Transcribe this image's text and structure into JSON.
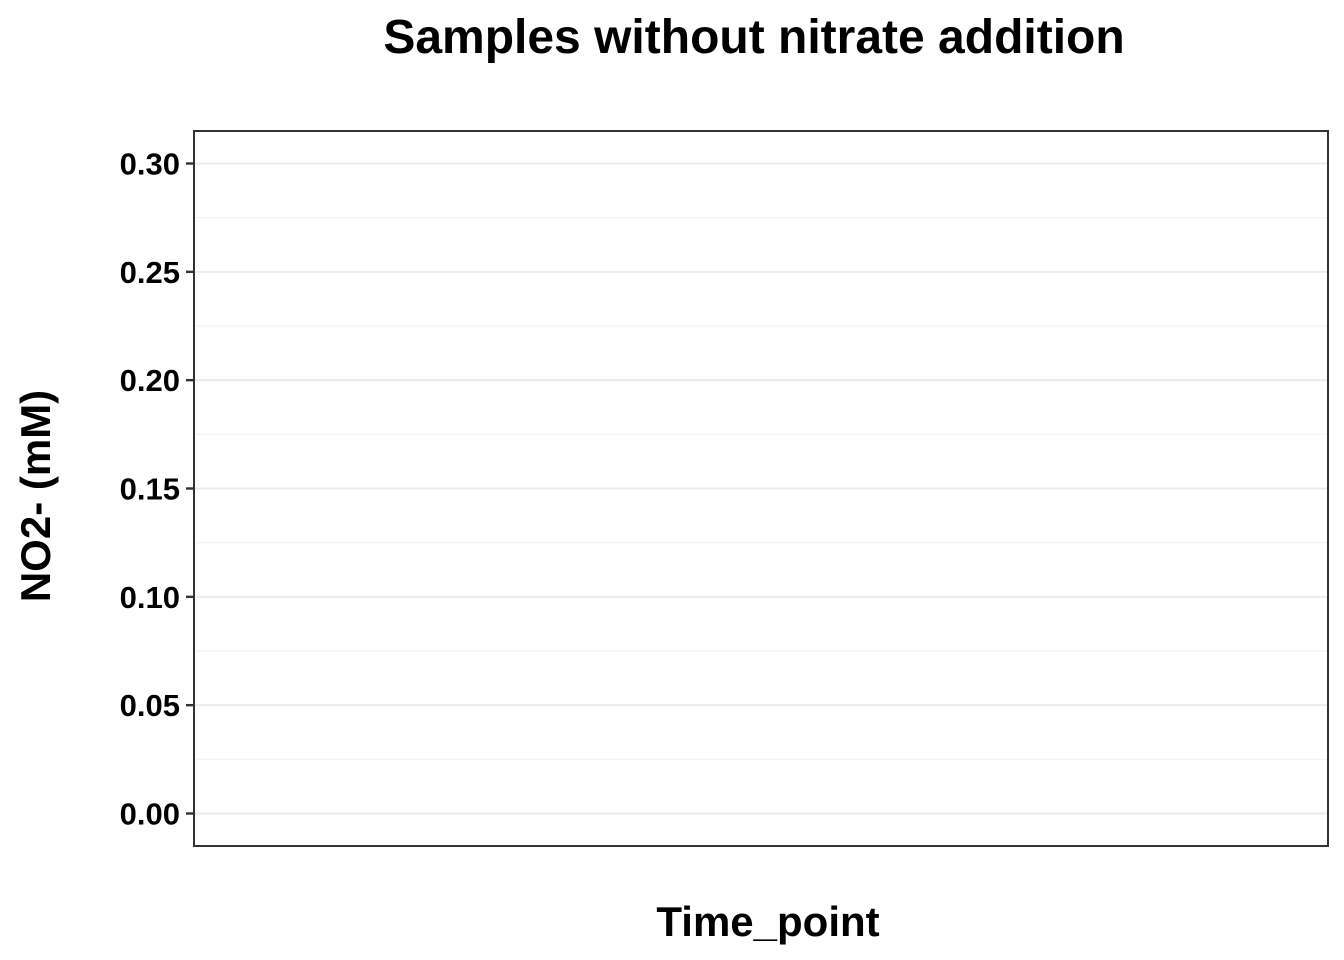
{
  "chart_data": {
    "type": "line",
    "title": "Samples without nitrate addition",
    "xlabel": "Time_point",
    "ylabel": "NO2- (mM)",
    "ylim": [
      -0.015,
      0.315
    ],
    "y_ticks": [
      {
        "value": 0.0,
        "label": "0.00"
      },
      {
        "value": 0.05,
        "label": "0.05"
      },
      {
        "value": 0.1,
        "label": "0.10"
      },
      {
        "value": 0.15,
        "label": "0.15"
      },
      {
        "value": 0.2,
        "label": "0.20"
      },
      {
        "value": 0.25,
        "label": "0.25"
      },
      {
        "value": 0.3,
        "label": "0.30"
      }
    ],
    "x_ticks": [],
    "series": [],
    "grid": true,
    "legend": "none"
  }
}
